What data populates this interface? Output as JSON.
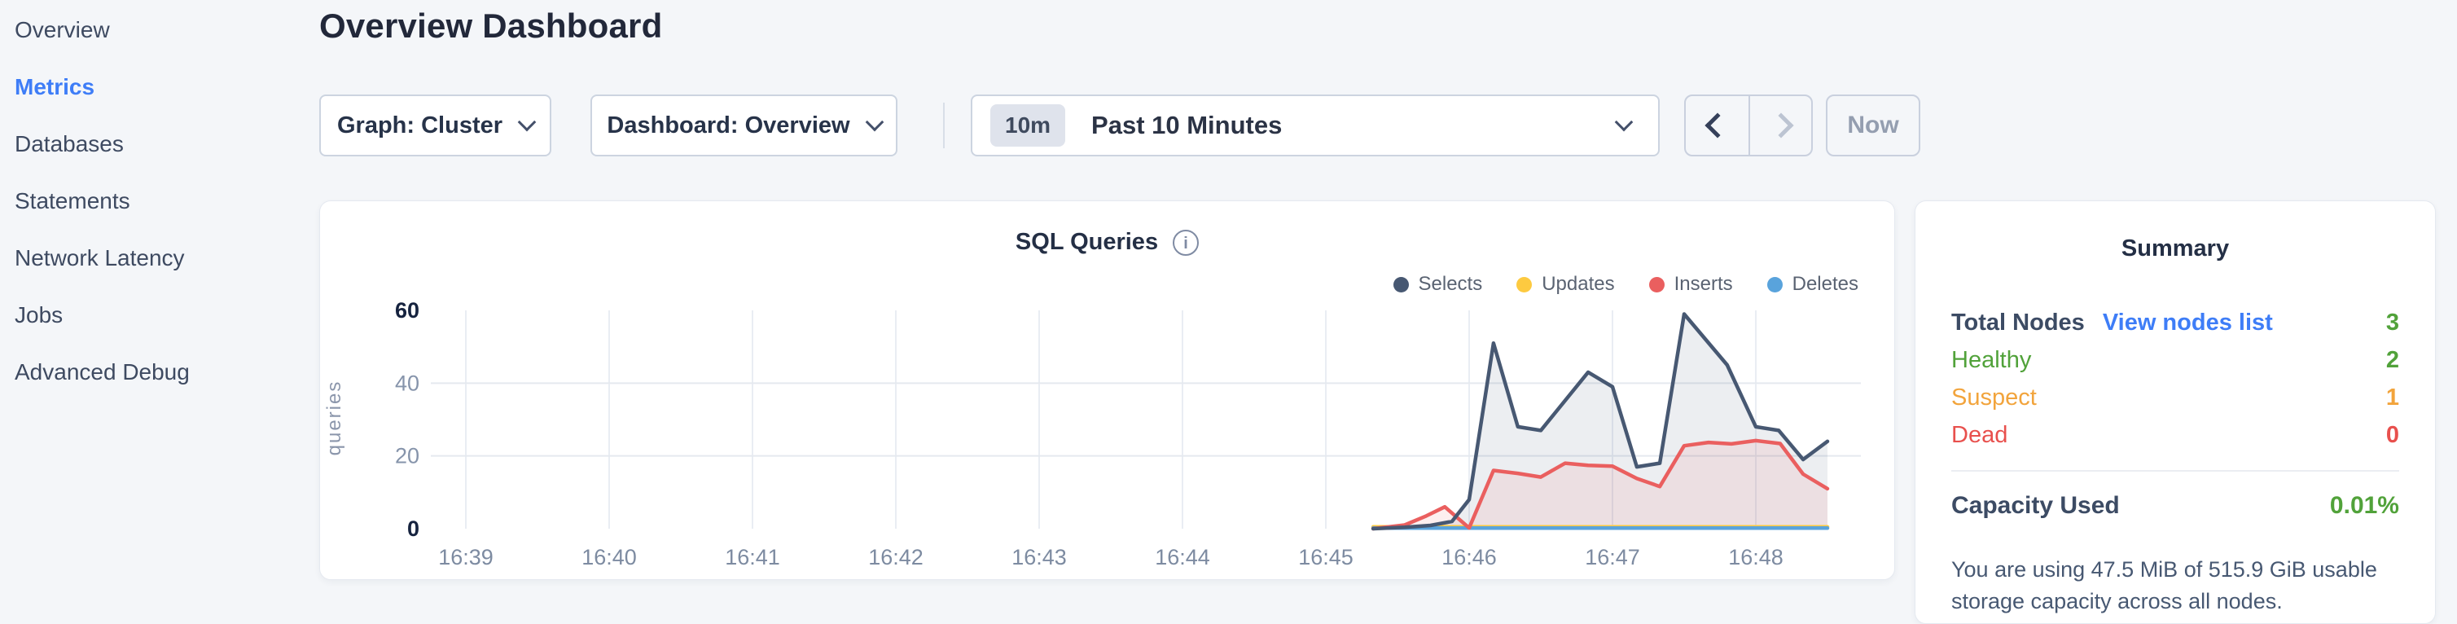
{
  "sidebar": {
    "items": [
      {
        "label": "Overview",
        "active": false
      },
      {
        "label": "Metrics",
        "active": true
      },
      {
        "label": "Databases",
        "active": false
      },
      {
        "label": "Statements",
        "active": false
      },
      {
        "label": "Network Latency",
        "active": false
      },
      {
        "label": "Jobs",
        "active": false
      },
      {
        "label": "Advanced Debug",
        "active": false
      }
    ],
    "active_color": "#3e7df7"
  },
  "header": {
    "title": "Overview Dashboard"
  },
  "toolbar": {
    "graph_dropdown": "Graph: Cluster",
    "dashboard_dropdown": "Dashboard: Overview",
    "time_badge": "10m",
    "time_label": "Past 10 Minutes",
    "back_icon": "chevron-left",
    "forward_icon": "chevron-right",
    "now_label": "Now"
  },
  "chart_data": {
    "type": "area",
    "title": "SQL Queries",
    "ylabel": "queries",
    "xlabel": "",
    "x_unit": "minutes_after_16:39",
    "x_ticks": [
      "16:39",
      "16:40",
      "16:41",
      "16:42",
      "16:43",
      "16:44",
      "16:45",
      "16:46",
      "16:47",
      "16:48"
    ],
    "y_ticks": [
      0,
      20,
      40,
      60
    ],
    "y_ticks_emphasized": [
      0,
      60
    ],
    "ylim": [
      0,
      60
    ],
    "xlim": [
      -0.25,
      9.75
    ],
    "grid": true,
    "legend_position": "top-right",
    "series": [
      {
        "name": "Selects",
        "color": "#475872",
        "fill": "rgba(71,88,114,0.10)",
        "points": [
          [
            6.33,
            0
          ],
          [
            6.55,
            0.4
          ],
          [
            6.73,
            0.9
          ],
          [
            6.88,
            2
          ],
          [
            7.0,
            8
          ],
          [
            7.17,
            51
          ],
          [
            7.34,
            28
          ],
          [
            7.5,
            27
          ],
          [
            7.83,
            43
          ],
          [
            8.0,
            39
          ],
          [
            8.17,
            17
          ],
          [
            8.33,
            18
          ],
          [
            8.5,
            59
          ],
          [
            8.8,
            45
          ],
          [
            9.0,
            28
          ],
          [
            9.16,
            27
          ],
          [
            9.33,
            19
          ],
          [
            9.5,
            24
          ]
        ]
      },
      {
        "name": "Updates",
        "color": "#fdca40",
        "fill": "none",
        "points": [
          [
            6.33,
            0.5
          ],
          [
            9.5,
            0.5
          ]
        ]
      },
      {
        "name": "Inserts",
        "color": "#ea5f5f",
        "fill": "rgba(234,95,95,0.10)",
        "points": [
          [
            6.33,
            0
          ],
          [
            6.55,
            1
          ],
          [
            6.7,
            3.5
          ],
          [
            6.83,
            6
          ],
          [
            7.0,
            0.2
          ],
          [
            7.17,
            16
          ],
          [
            7.34,
            15.2
          ],
          [
            7.5,
            14.2
          ],
          [
            7.67,
            18
          ],
          [
            7.83,
            17.4
          ],
          [
            8.0,
            17.2
          ],
          [
            8.17,
            13.8
          ],
          [
            8.33,
            11.6
          ],
          [
            8.5,
            22.8
          ],
          [
            8.67,
            23.7
          ],
          [
            8.83,
            23.3
          ],
          [
            9.0,
            24.2
          ],
          [
            9.17,
            23.4
          ],
          [
            9.33,
            15
          ],
          [
            9.5,
            11
          ]
        ]
      },
      {
        "name": "Deletes",
        "color": "#59a3dc",
        "fill": "none",
        "points": [
          [
            6.33,
            0.15
          ],
          [
            9.5,
            0.15
          ]
        ]
      }
    ]
  },
  "summary": {
    "title": "Summary",
    "rows": [
      {
        "label": "Total Nodes",
        "link": "View nodes list",
        "value": "3",
        "label_color": "#3c4b64",
        "value_color": "#51a23a"
      },
      {
        "label": "Healthy",
        "value": "2",
        "label_color": "#51a23a",
        "value_color": "#51a23a"
      },
      {
        "label": "Suspect",
        "value": "1",
        "label_color": "#f2a43c",
        "value_color": "#f2a43c"
      },
      {
        "label": "Dead",
        "value": "0",
        "label_color": "#e8504d",
        "value_color": "#e8504d"
      }
    ],
    "capacity_label": "Capacity Used",
    "capacity_value": "0.01%",
    "capacity_value_color": "#51a23a",
    "capacity_note": "You are using 47.5 MiB of 515.9 GiB usable storage capacity across all nodes."
  }
}
